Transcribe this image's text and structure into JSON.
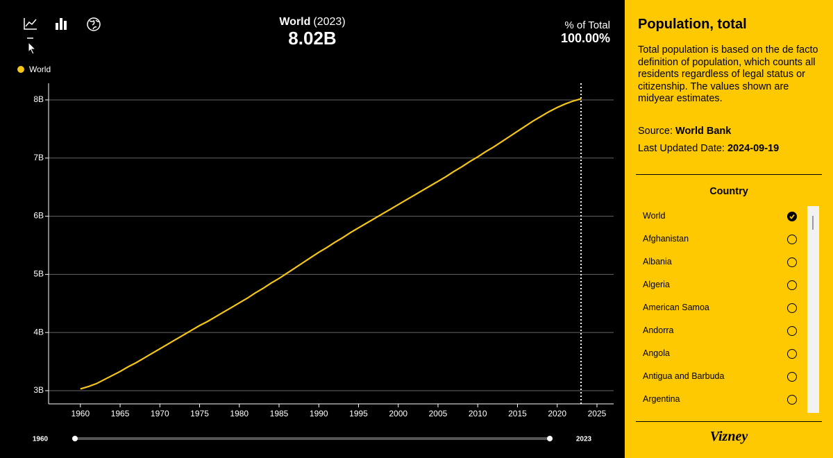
{
  "chart_data": {
    "type": "line",
    "x": [
      1960,
      1961,
      1962,
      1963,
      1964,
      1965,
      1966,
      1967,
      1968,
      1969,
      1970,
      1971,
      1972,
      1973,
      1974,
      1975,
      1976,
      1977,
      1978,
      1979,
      1980,
      1981,
      1982,
      1983,
      1984,
      1985,
      1986,
      1987,
      1988,
      1989,
      1990,
      1991,
      1992,
      1993,
      1994,
      1995,
      1996,
      1997,
      1998,
      1999,
      2000,
      2001,
      2002,
      2003,
      2004,
      2005,
      2006,
      2007,
      2008,
      2009,
      2010,
      2011,
      2012,
      2013,
      2014,
      2015,
      2016,
      2017,
      2018,
      2019,
      2020,
      2021,
      2022,
      2023
    ],
    "series": [
      {
        "name": "World",
        "color": "#f5c518",
        "values": [
          3.03,
          3.07,
          3.12,
          3.19,
          3.26,
          3.33,
          3.41,
          3.48,
          3.56,
          3.64,
          3.72,
          3.8,
          3.88,
          3.96,
          4.04,
          4.12,
          4.19,
          4.27,
          4.35,
          4.43,
          4.51,
          4.59,
          4.68,
          4.76,
          4.85,
          4.93,
          5.02,
          5.11,
          5.2,
          5.29,
          5.38,
          5.46,
          5.55,
          5.63,
          5.72,
          5.8,
          5.88,
          5.96,
          6.04,
          6.12,
          6.2,
          6.28,
          6.36,
          6.44,
          6.52,
          6.6,
          6.68,
          6.77,
          6.85,
          6.94,
          7.02,
          7.11,
          7.19,
          7.28,
          7.37,
          7.46,
          7.55,
          7.64,
          7.72,
          7.8,
          7.87,
          7.93,
          7.98,
          8.02
        ]
      }
    ],
    "xlim": [
      1956,
      2027.1
    ],
    "xticks": [
      1960,
      1965,
      1970,
      1975,
      1980,
      1985,
      1990,
      1995,
      2000,
      2005,
      2010,
      2015,
      2020,
      2025
    ],
    "ylim": [
      2.773,
      8.286
    ],
    "yticks": [
      {
        "value": 3,
        "label": "3B"
      },
      {
        "value": 4,
        "label": "4B"
      },
      {
        "value": 5,
        "label": "5B"
      },
      {
        "value": 6,
        "label": "6B"
      },
      {
        "value": 7,
        "label": "7B"
      },
      {
        "value": 8,
        "label": "8B"
      }
    ],
    "grid": true,
    "highlight_x": 2023
  },
  "header": {
    "country": "World",
    "year": "(2023)",
    "value": "8.02B",
    "share_label": "% of Total",
    "share": "100.00%"
  },
  "slider": {
    "start": "1960",
    "end": "2023"
  },
  "sidebar": {
    "title": "Population, total",
    "description": "Total population is based on the de facto definition of population, which counts all residents regardless of legal status or citizenship. The values shown are midyear estimates.",
    "source_label": "Source:",
    "source": "World Bank",
    "updated_label": "Last Updated Date:",
    "updated": "2024-09-19",
    "list_title": "Country",
    "countries": [
      {
        "name": "World",
        "selected": true
      },
      {
        "name": "Afghanistan",
        "selected": false
      },
      {
        "name": "Albania",
        "selected": false
      },
      {
        "name": "Algeria",
        "selected": false
      },
      {
        "name": "American Samoa",
        "selected": false
      },
      {
        "name": "Andorra",
        "selected": false
      },
      {
        "name": "Angola",
        "selected": false
      },
      {
        "name": "Antigua and Barbuda",
        "selected": false
      },
      {
        "name": "Argentina",
        "selected": false
      }
    ],
    "logo": "Vizney"
  }
}
